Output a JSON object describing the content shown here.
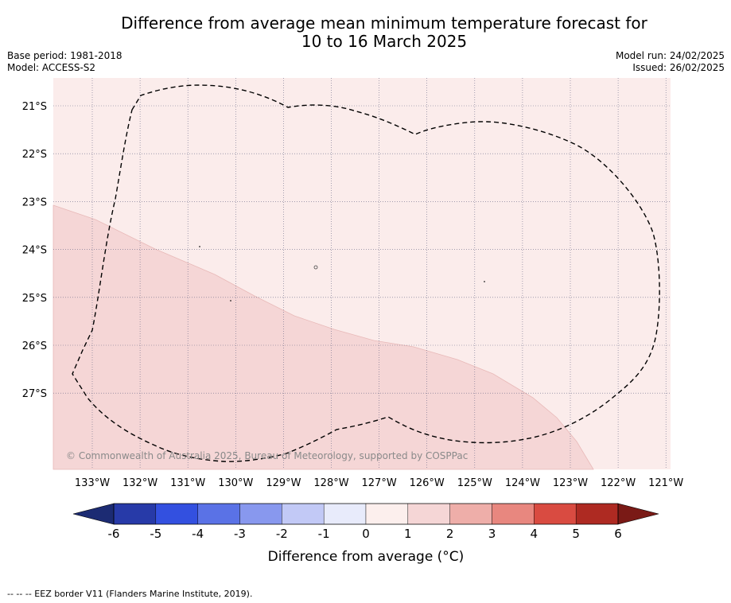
{
  "title_line1": "Difference from average mean minimum temperature forecast for",
  "title_line2": "10 to 16 March 2025",
  "base_period": "Base period: 1981-2018",
  "model": "Model: ACCESS-S2",
  "model_run": "Model run: 24/02/2025",
  "issued": "Issued: 26/02/2025",
  "copyright": "© Commonwealth of Australia 2025, Bureau of Meteorology, supported by COSPPac",
  "footnote": "-- -- -- EEZ border V11 (Flanders Marine Institute, 2019).",
  "colors": {
    "band_0_1": "#fbeceb",
    "band_1_2": "#f5d6d6",
    "eez_line": "#000000"
  },
  "map": {
    "lon_ticks": [
      "133°W",
      "132°W",
      "131°W",
      "130°W",
      "129°W",
      "128°W",
      "127°W",
      "126°W",
      "125°W",
      "124°W",
      "123°W",
      "122°W",
      "121°W"
    ],
    "lat_ticks": [
      "21°S",
      "22°S",
      "23°S",
      "24°S",
      "25°S",
      "26°S",
      "27°S"
    ]
  },
  "colorbar": {
    "title": "Difference from average (°C)",
    "labels": [
      "-6",
      "-5",
      "-4",
      "-3",
      "-2",
      "-1",
      "0",
      "1",
      "2",
      "3",
      "4",
      "5",
      "6"
    ],
    "colors": [
      "#273aa8",
      "#3350e0",
      "#5a72e6",
      "#8898ee",
      "#c2c9f6",
      "#e8ebfb",
      "#fcefed",
      "#f5d6d6",
      "#eeaea9",
      "#e8877f",
      "#d94b41",
      "#ae2a22"
    ],
    "under_color": "#1c2b73",
    "over_color": "#7a1a16"
  }
}
